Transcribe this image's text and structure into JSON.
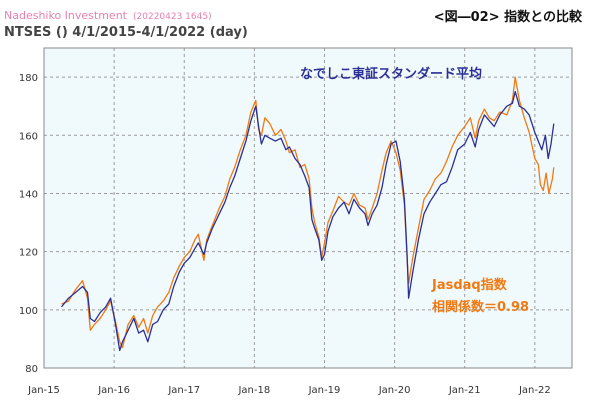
{
  "header": {
    "brand": "Nadeshiko Investment",
    "stamp": "(20220423 1645)",
    "figure_title": "<図―02> 指数との比較",
    "subtitle": "NTSES () 4/1/2015-4/1/2022 (day)"
  },
  "colors": {
    "plot_background": "#f0fafc",
    "grid": "#9c9c9c",
    "series_standard": "#2b2f96",
    "series_jasdaq": "#ef7a14",
    "brand": "#e87fb2"
  },
  "chart_data": {
    "type": "line",
    "title": "<図―02> 指数との比較",
    "xlabel": "",
    "ylabel": "",
    "ylim": [
      80,
      190
    ],
    "yticks": [
      80,
      100,
      120,
      140,
      160,
      180
    ],
    "xlim": [
      2015.0,
      2022.53
    ],
    "xticks": [
      {
        "label": "Jan-15",
        "x": 2015.0
      },
      {
        "label": "Jan-16",
        "x": 2016.0
      },
      {
        "label": "Jan-17",
        "x": 2017.0
      },
      {
        "label": "Jan-18",
        "x": 2018.0
      },
      {
        "label": "Jan-19",
        "x": 2019.0
      },
      {
        "label": "Jan-20",
        "x": 2020.0
      },
      {
        "label": "Jan-21",
        "x": 2021.0
      },
      {
        "label": "Jan-22",
        "x": 2022.0
      }
    ],
    "grid": true,
    "annotations": {
      "standard": "なでしこ東証スタンダード平均",
      "jasdaq": "Jasdaq指数",
      "correlation": "相関係数＝0.98"
    },
    "series": [
      {
        "name": "なでしこ東証スタンダード平均",
        "color": "#2b2f96",
        "points": [
          [
            2015.25,
            101
          ],
          [
            2015.35,
            104
          ],
          [
            2015.45,
            106
          ],
          [
            2015.55,
            108
          ],
          [
            2015.62,
            106
          ],
          [
            2015.66,
            97
          ],
          [
            2015.72,
            96
          ],
          [
            2015.8,
            99
          ],
          [
            2015.88,
            101
          ],
          [
            2015.95,
            104
          ],
          [
            2016.02,
            95
          ],
          [
            2016.08,
            86
          ],
          [
            2016.12,
            89
          ],
          [
            2016.2,
            93
          ],
          [
            2016.28,
            97
          ],
          [
            2016.35,
            92
          ],
          [
            2016.42,
            93
          ],
          [
            2016.48,
            89
          ],
          [
            2016.55,
            95
          ],
          [
            2016.62,
            96
          ],
          [
            2016.7,
            100
          ],
          [
            2016.78,
            102
          ],
          [
            2016.85,
            108
          ],
          [
            2016.93,
            113
          ],
          [
            2017.0,
            116
          ],
          [
            2017.08,
            118
          ],
          [
            2017.15,
            121
          ],
          [
            2017.2,
            123
          ],
          [
            2017.28,
            119
          ],
          [
            2017.32,
            123
          ],
          [
            2017.4,
            128
          ],
          [
            2017.5,
            133
          ],
          [
            2017.58,
            137
          ],
          [
            2017.65,
            142
          ],
          [
            2017.72,
            146
          ],
          [
            2017.8,
            152
          ],
          [
            2017.88,
            158
          ],
          [
            2017.95,
            165
          ],
          [
            2018.02,
            170
          ],
          [
            2018.06,
            163
          ],
          [
            2018.1,
            157
          ],
          [
            2018.15,
            160
          ],
          [
            2018.22,
            159
          ],
          [
            2018.3,
            158
          ],
          [
            2018.38,
            159
          ],
          [
            2018.45,
            155
          ],
          [
            2018.5,
            156
          ],
          [
            2018.58,
            152
          ],
          [
            2018.65,
            150
          ],
          [
            2018.72,
            146
          ],
          [
            2018.78,
            142
          ],
          [
            2018.82,
            131
          ],
          [
            2018.86,
            128
          ],
          [
            2018.92,
            124
          ],
          [
            2018.96,
            117
          ],
          [
            2019.0,
            119
          ],
          [
            2019.05,
            127
          ],
          [
            2019.12,
            132
          ],
          [
            2019.2,
            135
          ],
          [
            2019.28,
            137
          ],
          [
            2019.35,
            133
          ],
          [
            2019.42,
            138
          ],
          [
            2019.5,
            135
          ],
          [
            2019.58,
            133
          ],
          [
            2019.62,
            129
          ],
          [
            2019.68,
            133
          ],
          [
            2019.75,
            136
          ],
          [
            2019.82,
            142
          ],
          [
            2019.88,
            150
          ],
          [
            2019.95,
            157
          ],
          [
            2020.02,
            158
          ],
          [
            2020.08,
            151
          ],
          [
            2020.14,
            138
          ],
          [
            2020.18,
            118
          ],
          [
            2020.2,
            104
          ],
          [
            2020.26,
            113
          ],
          [
            2020.34,
            124
          ],
          [
            2020.42,
            133
          ],
          [
            2020.5,
            137
          ],
          [
            2020.58,
            140
          ],
          [
            2020.66,
            143
          ],
          [
            2020.74,
            144
          ],
          [
            2020.82,
            149
          ],
          [
            2020.9,
            155
          ],
          [
            2021.0,
            157
          ],
          [
            2021.08,
            161
          ],
          [
            2021.15,
            156
          ],
          [
            2021.2,
            162
          ],
          [
            2021.28,
            167
          ],
          [
            2021.35,
            165
          ],
          [
            2021.42,
            163
          ],
          [
            2021.5,
            167
          ],
          [
            2021.6,
            170
          ],
          [
            2021.68,
            171
          ],
          [
            2021.72,
            175
          ],
          [
            2021.78,
            170
          ],
          [
            2021.85,
            169
          ],
          [
            2021.92,
            167
          ],
          [
            2022.0,
            161
          ],
          [
            2022.05,
            158
          ],
          [
            2022.1,
            155
          ],
          [
            2022.15,
            160
          ],
          [
            2022.19,
            152
          ],
          [
            2022.23,
            157
          ],
          [
            2022.27,
            164
          ]
        ]
      },
      {
        "name": "Jasdaq指数",
        "color": "#ef7a14",
        "points": [
          [
            2015.25,
            102
          ],
          [
            2015.35,
            103
          ],
          [
            2015.45,
            107
          ],
          [
            2015.55,
            110
          ],
          [
            2015.62,
            104
          ],
          [
            2015.66,
            93
          ],
          [
            2015.72,
            95
          ],
          [
            2015.8,
            97
          ],
          [
            2015.88,
            100
          ],
          [
            2015.95,
            103
          ],
          [
            2016.02,
            96
          ],
          [
            2016.08,
            89
          ],
          [
            2016.12,
            87
          ],
          [
            2016.2,
            95
          ],
          [
            2016.28,
            98
          ],
          [
            2016.35,
            94
          ],
          [
            2016.42,
            97
          ],
          [
            2016.48,
            92
          ],
          [
            2016.55,
            98
          ],
          [
            2016.62,
            101
          ],
          [
            2016.7,
            103
          ],
          [
            2016.78,
            106
          ],
          [
            2016.85,
            111
          ],
          [
            2016.93,
            115
          ],
          [
            2017.0,
            118
          ],
          [
            2017.08,
            120
          ],
          [
            2017.15,
            124
          ],
          [
            2017.2,
            126
          ],
          [
            2017.28,
            117
          ],
          [
            2017.32,
            124
          ],
          [
            2017.4,
            129
          ],
          [
            2017.5,
            135
          ],
          [
            2017.58,
            139
          ],
          [
            2017.65,
            145
          ],
          [
            2017.72,
            149
          ],
          [
            2017.8,
            155
          ],
          [
            2017.88,
            160
          ],
          [
            2017.95,
            168
          ],
          [
            2018.02,
            172
          ],
          [
            2018.06,
            162
          ],
          [
            2018.1,
            160
          ],
          [
            2018.15,
            166
          ],
          [
            2018.22,
            164
          ],
          [
            2018.3,
            160
          ],
          [
            2018.38,
            162
          ],
          [
            2018.45,
            158
          ],
          [
            2018.5,
            154
          ],
          [
            2018.58,
            155
          ],
          [
            2018.65,
            149
          ],
          [
            2018.72,
            150
          ],
          [
            2018.78,
            145
          ],
          [
            2018.82,
            135
          ],
          [
            2018.86,
            130
          ],
          [
            2018.92,
            125
          ],
          [
            2018.96,
            118
          ],
          [
            2019.0,
            123
          ],
          [
            2019.05,
            130
          ],
          [
            2019.12,
            134
          ],
          [
            2019.2,
            139
          ],
          [
            2019.28,
            137
          ],
          [
            2019.35,
            136
          ],
          [
            2019.42,
            140
          ],
          [
            2019.5,
            136
          ],
          [
            2019.58,
            135
          ],
          [
            2019.62,
            131
          ],
          [
            2019.68,
            135
          ],
          [
            2019.75,
            140
          ],
          [
            2019.82,
            148
          ],
          [
            2019.88,
            154
          ],
          [
            2019.95,
            158
          ],
          [
            2020.02,
            154
          ],
          [
            2020.08,
            148
          ],
          [
            2020.14,
            136
          ],
          [
            2020.18,
            117
          ],
          [
            2020.2,
            109
          ],
          [
            2020.26,
            118
          ],
          [
            2020.34,
            128
          ],
          [
            2020.42,
            138
          ],
          [
            2020.5,
            141
          ],
          [
            2020.58,
            145
          ],
          [
            2020.66,
            147
          ],
          [
            2020.74,
            151
          ],
          [
            2020.82,
            156
          ],
          [
            2020.9,
            160
          ],
          [
            2021.0,
            163
          ],
          [
            2021.08,
            166
          ],
          [
            2021.15,
            159
          ],
          [
            2021.2,
            165
          ],
          [
            2021.28,
            169
          ],
          [
            2021.35,
            166
          ],
          [
            2021.42,
            165
          ],
          [
            2021.5,
            168
          ],
          [
            2021.6,
            167
          ],
          [
            2021.68,
            172
          ],
          [
            2021.72,
            180
          ],
          [
            2021.78,
            172
          ],
          [
            2021.85,
            166
          ],
          [
            2021.92,
            161
          ],
          [
            2022.0,
            152
          ],
          [
            2022.05,
            150
          ],
          [
            2022.08,
            143
          ],
          [
            2022.12,
            141
          ],
          [
            2022.16,
            147
          ],
          [
            2022.2,
            140
          ],
          [
            2022.25,
            145
          ],
          [
            2022.27,
            149
          ]
        ]
      }
    ]
  }
}
